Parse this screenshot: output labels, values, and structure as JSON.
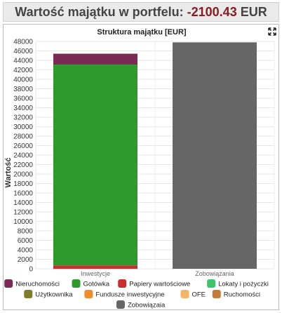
{
  "header": {
    "label": "Wartość majątku w portfelu:",
    "value": "-2100.43",
    "currency": "EUR"
  },
  "chart_data": {
    "type": "bar",
    "stacked": true,
    "title": "Struktura majątku [EUR]",
    "ylabel": "Wartość",
    "xlabel": "",
    "ylim": [
      0,
      48000
    ],
    "yticks": [
      0,
      2000,
      4000,
      6000,
      8000,
      10000,
      12000,
      14000,
      16000,
      18000,
      20000,
      22000,
      24000,
      26000,
      28000,
      30000,
      32000,
      34000,
      36000,
      38000,
      40000,
      42000,
      44000,
      46000,
      48000
    ],
    "categories": [
      "Inwestycje",
      "Zobowiązania"
    ],
    "series": [
      {
        "name": "Nieruchomości",
        "color": "#7b2a56",
        "values": [
          2300,
          0
        ]
      },
      {
        "name": "Gotówka",
        "color": "#2e9a2e",
        "values": [
          42400,
          0
        ]
      },
      {
        "name": "Papiery wartościowe",
        "color": "#cc2e2e",
        "values": [
          700,
          0
        ]
      },
      {
        "name": "Lokaty i pożyczki",
        "color": "#3ec46c",
        "values": [
          0,
          0
        ]
      },
      {
        "name": "Użytkownika",
        "color": "#7d7d2a",
        "values": [
          0,
          0
        ]
      },
      {
        "name": "Fundusze inwestycyjne",
        "color": "#f08c2a",
        "values": [
          0,
          0
        ]
      },
      {
        "name": "OFE",
        "color": "#f4b46a",
        "values": [
          0,
          0
        ]
      },
      {
        "name": "Ruchomości",
        "color": "#c47a38",
        "values": [
          0,
          0
        ]
      },
      {
        "name": "Zobowiązaia",
        "color": "#666666",
        "values": [
          0,
          47800
        ]
      }
    ],
    "stack_order": [
      2,
      1,
      0,
      8
    ],
    "grid": true,
    "legend_position": "bottom"
  },
  "icons": {
    "fullscreen": "fullscreen-icon"
  }
}
